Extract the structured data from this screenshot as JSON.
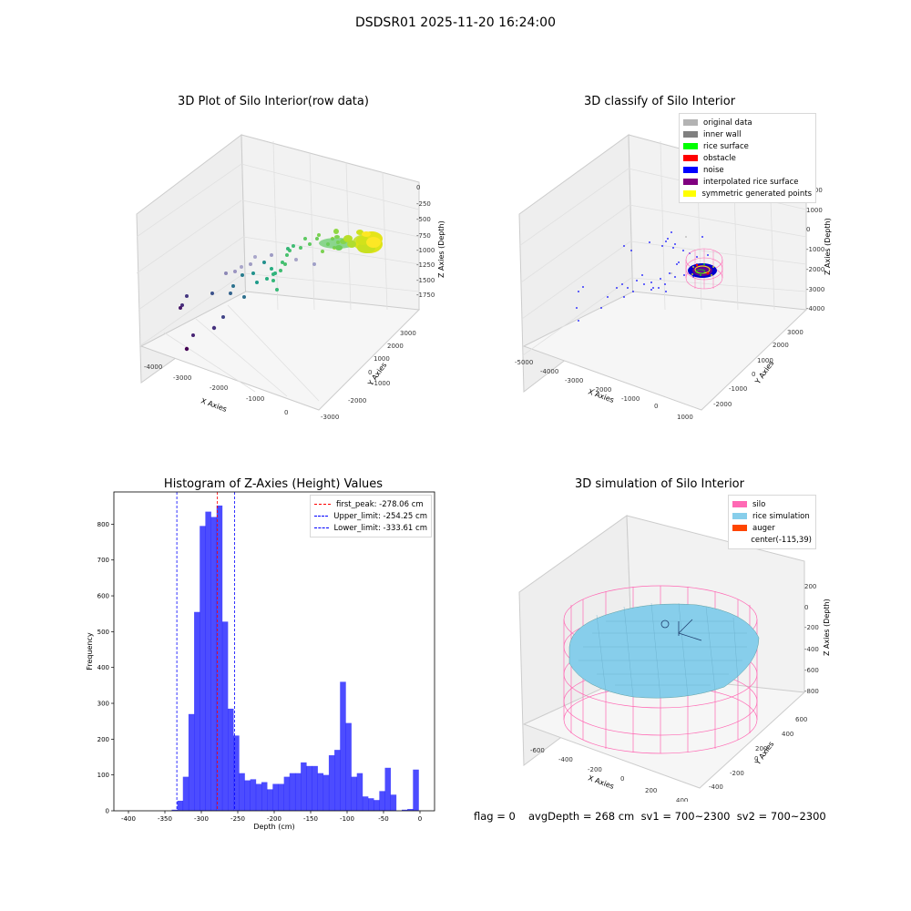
{
  "suptitle": "DSDSR01 2025-11-20 16:24:00",
  "panels": {
    "raw": {
      "title": "3D Plot of Silo Interior(row data)",
      "xlabel": "X Axies",
      "ylabel": "Y Axies",
      "zlabel": "Z Axies (Depth)",
      "xticks": [
        "-4000",
        "-3000",
        "-2000",
        "-1000",
        "0"
      ],
      "yticks": [
        "-3000",
        "-2000",
        "-1000",
        "0",
        "1000",
        "2000",
        "3000"
      ],
      "zticks": [
        "0",
        "-250",
        "-500",
        "-750",
        "-1000",
        "-1250",
        "-1500",
        "-1750"
      ]
    },
    "classify": {
      "title": "3D classify of Silo Interior",
      "xlabel": "X Axies",
      "ylabel": "Y Axies",
      "zlabel": "Z Axies (Depth)",
      "xticks": [
        "-5000",
        "-4000",
        "-3000",
        "-2000",
        "-1000",
        "0",
        "1000"
      ],
      "yticks": [
        "-2000",
        "-1000",
        "0",
        "1000",
        "2000",
        "3000"
      ],
      "zticks": [
        "2000",
        "1000",
        "0",
        "-1000",
        "-2000",
        "-3000",
        "-4000"
      ],
      "legend": [
        {
          "label": "original data",
          "color": "#b3b3b3"
        },
        {
          "label": "inner wall",
          "color": "#808080"
        },
        {
          "label": "rice surface",
          "color": "#00ff00"
        },
        {
          "label": "obstacle",
          "color": "#ff0000"
        },
        {
          "label": "noise",
          "color": "#0000ff"
        },
        {
          "label": "interpolated rice surface",
          "color": "#800080"
        },
        {
          "label": "symmetric generated points",
          "color": "#ffff00"
        }
      ]
    },
    "simulation": {
      "title": "3D simulation of Silo Interior",
      "xlabel": "X Axies",
      "ylabel": "Y Axies",
      "zlabel": "Z Axies (Depth)",
      "xticks": [
        "-600",
        "-400",
        "-200",
        "0",
        "200",
        "400"
      ],
      "yticks": [
        "-400",
        "-200",
        "0",
        "200",
        "400",
        "600"
      ],
      "zticks": [
        "200",
        "0",
        "-200",
        "-400",
        "-600",
        "-800"
      ],
      "legend": [
        {
          "label": "silo",
          "color": "#ff69b4"
        },
        {
          "label": "rice simulation",
          "color": "#87ceeb"
        },
        {
          "label": "auger",
          "color": "#ff4500"
        },
        {
          "label": "center(-115,39)",
          "color": ""
        }
      ]
    }
  },
  "footer": {
    "flag": "flag = 0",
    "stats": "avgDepth = 268 cm  sv1 = 700~2300  sv2 = 700~2300"
  },
  "chart_data": [
    {
      "type": "bar",
      "title": "Histogram of Z-Axies (Height) Values",
      "xlabel": "Depth (cm)",
      "ylabel": "Frequency",
      "xlim": [
        -420,
        20
      ],
      "ylim": [
        0,
        890
      ],
      "xticks": [
        -400,
        -350,
        -300,
        -250,
        -200,
        -150,
        -100,
        -50,
        0
      ],
      "yticks": [
        0,
        100,
        200,
        300,
        400,
        500,
        600,
        700,
        800
      ],
      "bin_width": 7.7,
      "bins_start": [
        -340.7,
        -333.0,
        -325.3,
        -317.6,
        -309.9,
        -302.2,
        -294.5,
        -286.8,
        -279.1,
        -271.4,
        -263.7,
        -256.0,
        -248.3,
        -240.6,
        -232.9,
        -225.2,
        -217.5,
        -209.8,
        -202.1,
        -194.4,
        -186.7,
        -179.0,
        -171.3,
        -163.6,
        -155.9,
        -148.2,
        -140.5,
        -132.8,
        -125.1,
        -117.4,
        -109.7,
        -102.0,
        -94.3,
        -86.6,
        -78.9,
        -71.2,
        -63.5,
        -55.8,
        -48.1,
        -40.4,
        -32.7,
        -25.0,
        -17.3,
        -9.6,
        -1.9
      ],
      "values": [
        3,
        28,
        95,
        270,
        555,
        795,
        835,
        820,
        852,
        528,
        285,
        210,
        105,
        85,
        88,
        75,
        80,
        60,
        75,
        75,
        95,
        105,
        105,
        135,
        125,
        125,
        105,
        100,
        155,
        170,
        360,
        245,
        95,
        105,
        40,
        35,
        30,
        55,
        120,
        45,
        0,
        3,
        5,
        115,
        0
      ],
      "bar_color": "#0000ff",
      "lines": [
        {
          "label": "first_peak: -278.06 cm",
          "x": -278.06,
          "color": "#ff0000"
        },
        {
          "label": "Upper_limit: -254.25 cm",
          "x": -254.25,
          "color": "#0000ff"
        },
        {
          "label": "Lower_limit: -333.61 cm",
          "x": -333.61,
          "color": "#0000ff"
        }
      ],
      "legend_position": "top-right"
    }
  ]
}
